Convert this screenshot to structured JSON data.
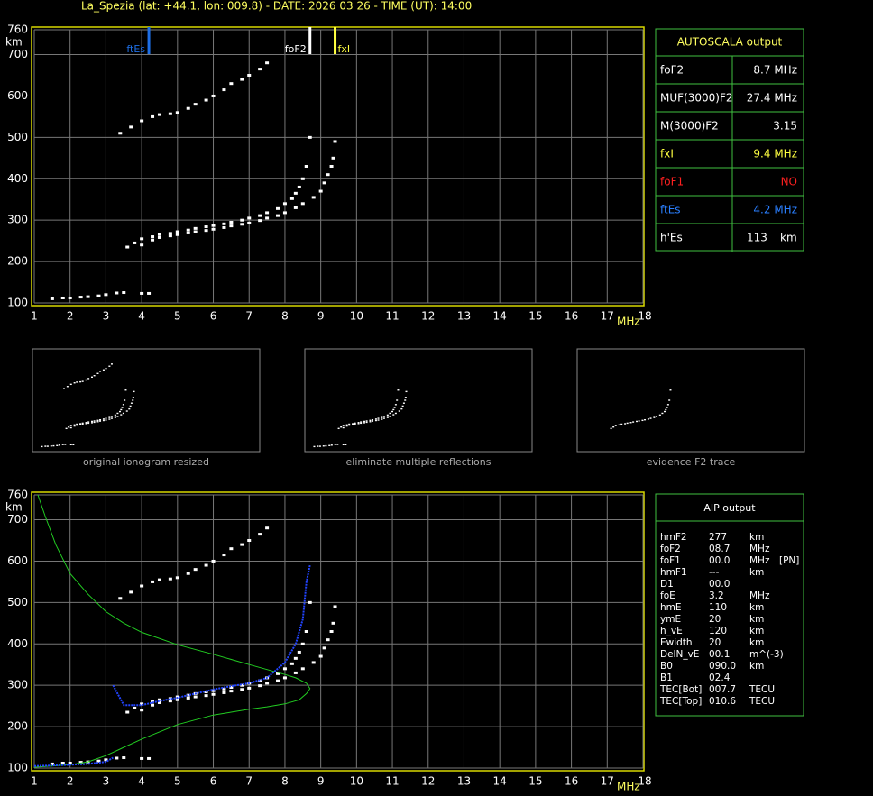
{
  "header": {
    "title": "La_Spezia (lat: +44.1, lon: 009.8) - DATE: 2026 03 26 - TIME (UT): 14:00"
  },
  "chart_data": [
    {
      "type": "scatter",
      "ylabel": "km",
      "xlabel": "MHz",
      "xlim": [
        1,
        18
      ],
      "ylim": [
        100,
        760
      ],
      "xticks": [
        1,
        2,
        3,
        4,
        5,
        6,
        7,
        8,
        9,
        10,
        11,
        12,
        13,
        14,
        15,
        16,
        17,
        18
      ],
      "yticks": [
        100,
        200,
        300,
        400,
        500,
        600,
        700,
        760
      ],
      "grid": true,
      "markers": [
        {
          "name": "ftEs",
          "value": 4.2,
          "color": "#1e6fe6"
        },
        {
          "name": "foF2",
          "value": 8.7,
          "color": "#ffffff"
        },
        {
          "name": "fxI",
          "value": 9.4,
          "color": "#ffff40"
        }
      ],
      "series": [
        {
          "style": "points",
          "color": "#ffffff",
          "x": [
            1.5,
            1.8,
            2.0,
            2.3,
            2.5,
            2.8,
            3.0,
            3.3,
            3.5,
            4.0,
            4.2
          ],
          "values": [
            110,
            112,
            112,
            114,
            115,
            117,
            120,
            124,
            125,
            123,
            123
          ]
        },
        {
          "style": "points",
          "color": "#ffffff",
          "x": [
            3.6,
            3.8,
            4.0,
            4.3,
            4.5,
            4.8,
            5.0,
            5.3,
            5.5,
            5.8,
            6.0,
            6.3,
            6.5,
            6.8,
            7.0,
            7.3,
            7.5,
            7.8,
            8.0,
            8.2,
            8.3,
            8.4,
            8.5,
            8.6,
            8.7
          ],
          "values": [
            235,
            245,
            255,
            260,
            265,
            268,
            272,
            276,
            280,
            284,
            287,
            291,
            295,
            300,
            305,
            311,
            318,
            328,
            340,
            352,
            365,
            380,
            400,
            430,
            500
          ]
        },
        {
          "style": "points",
          "color": "#ffffff",
          "x": [
            4.0,
            4.3,
            4.5,
            4.8,
            5.0,
            5.3,
            5.5,
            5.8,
            6.0,
            6.3,
            6.5,
            6.8,
            7.0,
            7.3,
            7.5,
            7.8,
            8.0,
            8.3,
            8.5,
            8.8,
            9.0,
            9.1,
            9.2,
            9.3,
            9.35,
            9.4
          ],
          "values": [
            240,
            252,
            258,
            262,
            265,
            269,
            272,
            275,
            278,
            282,
            286,
            290,
            293,
            299,
            305,
            311,
            318,
            330,
            340,
            355,
            370,
            390,
            410,
            430,
            450,
            490
          ]
        },
        {
          "style": "points",
          "color": "#ffffff",
          "x": [
            3.4,
            3.7,
            4.0,
            4.3,
            4.5,
            4.8,
            5.0,
            5.3,
            5.5,
            5.8,
            6.0,
            6.3,
            6.5,
            6.8,
            7.0,
            7.3,
            7.5
          ],
          "values": [
            510,
            525,
            540,
            550,
            555,
            557,
            560,
            570,
            580,
            590,
            600,
            615,
            630,
            640,
            650,
            665,
            680
          ]
        }
      ]
    },
    {
      "type": "scatter",
      "ylabel": "km",
      "xlabel": "MHz",
      "xlim": [
        1,
        18
      ],
      "ylim": [
        100,
        760
      ],
      "xticks": [
        1,
        2,
        3,
        4,
        5,
        6,
        7,
        8,
        9,
        10,
        11,
        12,
        13,
        14,
        15,
        16,
        17,
        18
      ],
      "yticks": [
        100,
        200,
        300,
        400,
        500,
        600,
        700,
        760
      ],
      "grid": true,
      "series": [
        {
          "style": "points",
          "color": "#ffffff",
          "x": [
            1.5,
            1.8,
            2.0,
            2.3,
            2.5,
            2.8,
            3.0,
            3.3,
            3.5,
            4.0,
            4.2
          ],
          "values": [
            110,
            112,
            112,
            114,
            115,
            117,
            120,
            124,
            125,
            123,
            123
          ]
        },
        {
          "style": "points",
          "color": "#ffffff",
          "x": [
            3.6,
            3.8,
            4.0,
            4.3,
            4.5,
            4.8,
            5.0,
            5.3,
            5.5,
            5.8,
            6.0,
            6.3,
            6.5,
            6.8,
            7.0,
            7.3,
            7.5,
            7.8,
            8.0,
            8.2,
            8.3,
            8.4,
            8.5,
            8.6,
            8.7
          ],
          "values": [
            235,
            245,
            255,
            260,
            265,
            268,
            272,
            276,
            280,
            284,
            287,
            291,
            295,
            300,
            305,
            311,
            318,
            328,
            340,
            352,
            365,
            380,
            400,
            430,
            500
          ]
        },
        {
          "style": "points",
          "color": "#ffffff",
          "x": [
            4.0,
            4.3,
            4.5,
            4.8,
            5.0,
            5.3,
            5.5,
            5.8,
            6.0,
            6.3,
            6.5,
            6.8,
            7.0,
            7.3,
            7.5,
            7.8,
            8.0,
            8.3,
            8.5,
            8.8,
            9.0,
            9.1,
            9.2,
            9.3,
            9.35,
            9.4
          ],
          "values": [
            240,
            252,
            258,
            262,
            265,
            269,
            272,
            275,
            278,
            282,
            286,
            290,
            293,
            299,
            305,
            311,
            318,
            330,
            340,
            355,
            370,
            390,
            410,
            430,
            450,
            490
          ]
        },
        {
          "style": "points",
          "color": "#ffffff",
          "x": [
            3.4,
            3.7,
            4.0,
            4.3,
            4.5,
            4.8,
            5.0,
            5.3,
            5.5,
            5.8,
            6.0,
            6.3,
            6.5,
            6.8,
            7.0,
            7.3,
            7.5
          ],
          "values": [
            510,
            525,
            540,
            550,
            555,
            557,
            560,
            570,
            580,
            590,
            600,
            615,
            630,
            640,
            650,
            665,
            680
          ]
        },
        {
          "style": "line",
          "color": "#22cc22",
          "x": [
            1.0,
            2.0,
            2.5,
            3.0,
            3.5,
            4.0,
            5.0,
            6.0,
            7.0,
            7.5,
            8.0,
            8.4,
            8.6,
            8.7,
            8.6,
            8.3,
            8.0,
            7.5,
            7.0,
            6.0,
            5.0,
            4.0,
            3.5,
            3.0,
            2.5,
            2.0,
            1.6,
            1.3,
            1.1
          ],
          "values": [
            102,
            108,
            115,
            130,
            150,
            170,
            205,
            228,
            242,
            248,
            255,
            265,
            280,
            292,
            305,
            318,
            326,
            338,
            350,
            375,
            398,
            428,
            450,
            478,
            520,
            570,
            640,
            710,
            760
          ]
        },
        {
          "style": "line",
          "color": "#2244ff",
          "x": [
            1.0,
            1.5,
            2.0,
            2.5,
            3.0,
            3.2
          ],
          "values": [
            105,
            106,
            108,
            110,
            115,
            125
          ]
        },
        {
          "style": "line",
          "color": "#2244ff",
          "x": [
            3.2,
            3.5,
            4.0,
            4.5,
            5.0,
            5.5,
            6.0,
            6.5,
            7.0,
            7.5,
            8.0,
            8.3,
            8.5,
            8.6,
            8.7
          ],
          "values": [
            300,
            252,
            252,
            262,
            270,
            280,
            290,
            298,
            305,
            318,
            355,
            400,
            460,
            550,
            590
          ]
        }
      ]
    }
  ],
  "panels": [
    {
      "caption": "original ionogram resized"
    },
    {
      "caption": "eliminate multiple reflections"
    },
    {
      "caption": "evidence F2 trace"
    }
  ],
  "autoscala": {
    "title": "AUTOSCALA output",
    "rows": [
      {
        "color": "#ffffff",
        "cells": [
          "foF2",
          "8.7 MHz"
        ]
      },
      {
        "color": "#ffffff",
        "cells": [
          "MUF(3000)F2",
          "27.4 MHz"
        ]
      },
      {
        "color": "#ffffff",
        "cells": [
          "M(3000)F2",
          "3.15"
        ]
      },
      {
        "color": "#ffff40",
        "cells": [
          "fxI",
          "9.4 MHz"
        ]
      },
      {
        "color": "#ff2020",
        "cells": [
          "foF1",
          "NO"
        ]
      },
      {
        "color": "#2a7fff",
        "cells": [
          "ftEs",
          "4.2 MHz"
        ]
      },
      {
        "color": "#ffffff",
        "cells": [
          "h'Es",
          "113",
          "km"
        ]
      }
    ]
  },
  "aip": {
    "title": "AIP output",
    "rows": [
      [
        "hmF2",
        "277",
        "km"
      ],
      [
        "foF2",
        "08.7",
        "MHz"
      ],
      [
        "foF1",
        "00.0",
        "MHz",
        "[PN]"
      ],
      [
        "hmF1",
        "---",
        "km"
      ],
      [
        "D1",
        "00.0"
      ],
      [
        "foE",
        "3.2",
        "MHz"
      ],
      [
        "hmE",
        "110",
        "km"
      ],
      [
        "ymE",
        "20",
        "km"
      ],
      [
        "h_vE",
        "120",
        "km"
      ],
      [
        "Ewidth",
        "20",
        "km"
      ],
      [
        "DelN_vE",
        "00.1",
        "m^(-3)"
      ],
      [
        "B0",
        "090.0",
        "km"
      ],
      [
        "B1",
        "02.4"
      ],
      [
        "TEC[Bot]",
        "007.7",
        "TECU"
      ],
      [
        "TEC[Top]",
        "010.6",
        "TECU"
      ]
    ]
  }
}
